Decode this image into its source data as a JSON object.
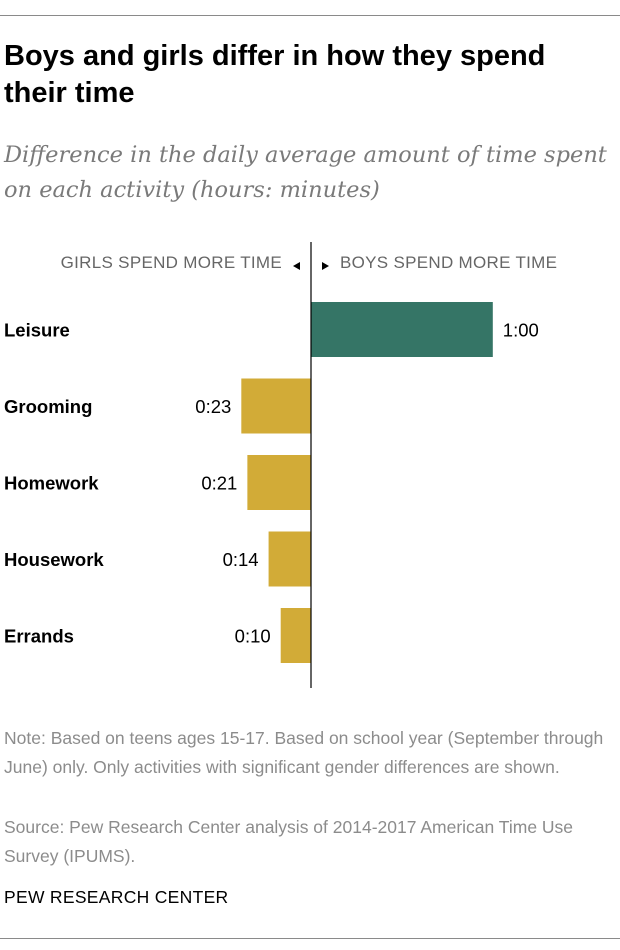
{
  "title": "Boys and girls differ in how they spend their time",
  "subtitle": "Difference in the daily average amount of time spent on each activity (hours: minutes)",
  "chart_data": {
    "type": "bar",
    "orientation": "horizontal",
    "direction_labels": {
      "left": "GIRLS SPEND MORE TIME",
      "right": "BOYS SPEND MORE TIME"
    },
    "categories": [
      "Leisure",
      "Grooming",
      "Homework",
      "Housework",
      "Errands"
    ],
    "values_minutes": [
      60,
      -23,
      -21,
      -14,
      -10
    ],
    "data_labels": [
      "1:00",
      "0:23",
      "0:21",
      "0:14",
      "0:10"
    ],
    "colors": {
      "boys": "#357566",
      "girls": "#d2ab37"
    }
  },
  "note": "Note: Based on teens ages 15-17. Based on school year (September through June) only. Only activities with significant gender differences are shown.",
  "source": "Source: Pew Research Center analysis of 2014-2017 American Time Use Survey (IPUMS).",
  "brand": "PEW RESEARCH CENTER"
}
